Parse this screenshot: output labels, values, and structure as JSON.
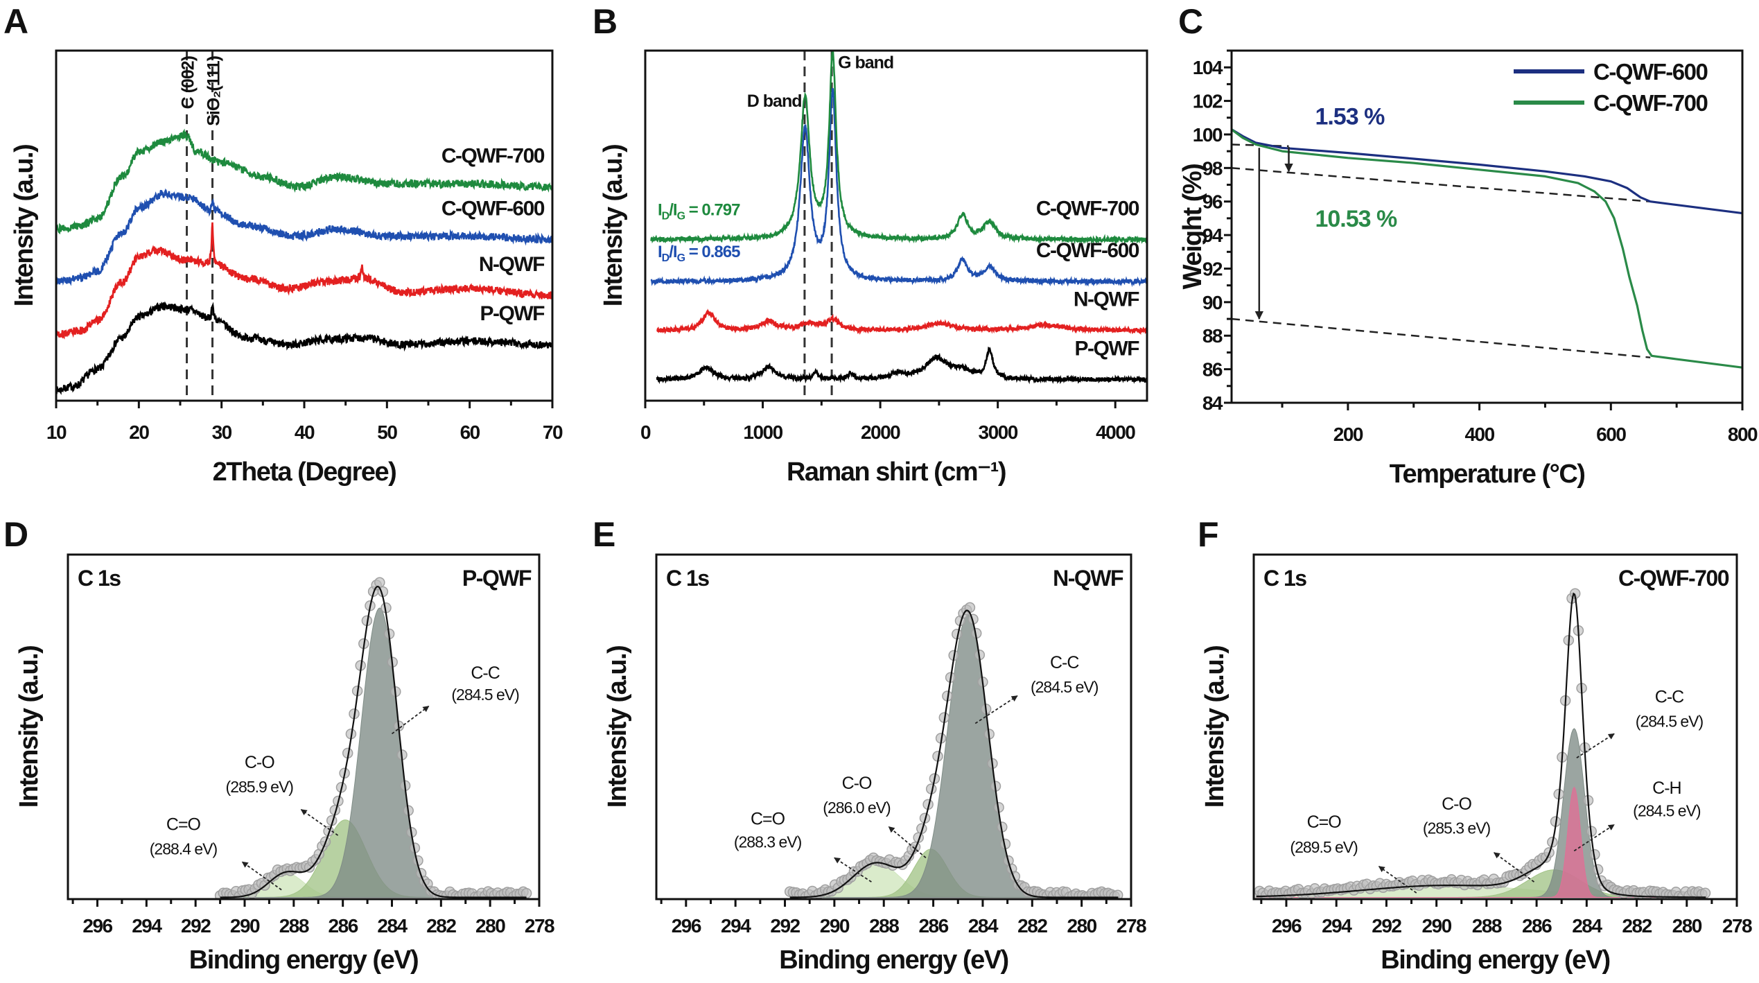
{
  "chart_data": [
    {
      "panel_label": "A",
      "type": "line",
      "xlabel": "2Theta (Degree)",
      "ylabel": "Intensity (a.u.)",
      "xlim": [
        10,
        70
      ],
      "ylim": [
        0,
        100
      ],
      "xticks": [
        10,
        20,
        30,
        40,
        50,
        60,
        70
      ],
      "x_minor_step": 5,
      "yticks": [],
      "reference_lines": [
        {
          "x": 25.8,
          "label": "C (002)"
        },
        {
          "x": 28.9,
          "label": "SiO₂(111)"
        }
      ],
      "series": [
        {
          "name": "P-QWF",
          "color": "#000000",
          "points": [
            [
              10,
              3
            ],
            [
              12,
              4
            ],
            [
              15,
              9
            ],
            [
              18,
              18
            ],
            [
              20,
              24
            ],
            [
              23,
              27
            ],
            [
              26,
              26
            ],
            [
              29,
              23
            ],
            [
              33,
              18
            ],
            [
              38,
              16
            ],
            [
              43,
              17.5
            ],
            [
              47,
              18
            ],
            [
              52,
              16
            ],
            [
              60,
              17
            ],
            [
              70,
              16
            ]
          ],
          "spikes": [
            [
              28.9,
              5
            ]
          ]
        },
        {
          "name": "N-QWF",
          "color": "#e32020",
          "points": [
            [
              10,
              19
            ],
            [
              13,
              20
            ],
            [
              15,
              23
            ],
            [
              18,
              34
            ],
            [
              20,
              41
            ],
            [
              22,
              43
            ],
            [
              26,
              40
            ],
            [
              29,
              39
            ],
            [
              33,
              35
            ],
            [
              38,
              32
            ],
            [
              43,
              34
            ],
            [
              47,
              35
            ],
            [
              52,
              31
            ],
            [
              60,
              32
            ],
            [
              70,
              30
            ]
          ],
          "spikes": [
            [
              28.9,
              11
            ],
            [
              47,
              3
            ]
          ]
        },
        {
          "name": "C-QWF-600",
          "color": "#1f4fb0",
          "points": [
            [
              10,
              34
            ],
            [
              13,
              35
            ],
            [
              15,
              37
            ],
            [
              18,
              48
            ],
            [
              20,
              55
            ],
            [
              23,
              59
            ],
            [
              26,
              58
            ],
            [
              29,
              54
            ],
            [
              33,
              50
            ],
            [
              39,
              47
            ],
            [
              44,
              49
            ],
            [
              50,
              47
            ],
            [
              60,
              47
            ],
            [
              70,
              46
            ]
          ],
          "spikes": [
            [
              28.9,
              3
            ]
          ]
        },
        {
          "name": "C-QWF-700",
          "color": "#1e8a3e",
          "points": [
            [
              10,
              49
            ],
            [
              13,
              50
            ],
            [
              15,
              52
            ],
            [
              18,
              64
            ],
            [
              20,
              71
            ],
            [
              23,
              74
            ],
            [
              25.8,
              76
            ],
            [
              27,
              71
            ],
            [
              30,
              68
            ],
            [
              35,
              64
            ],
            [
              39,
              61
            ],
            [
              44,
              64
            ],
            [
              50,
              62
            ],
            [
              60,
              62
            ],
            [
              70,
              61
            ]
          ],
          "spikes": []
        }
      ]
    },
    {
      "panel_label": "B",
      "type": "line",
      "xlabel": "Raman shirt (cm⁻¹)",
      "ylabel": "Intensity (a.u.)",
      "xlim": [
        0,
        4270
      ],
      "ylim": [
        0,
        100
      ],
      "xticks": [
        0,
        1000,
        2000,
        3000,
        4000
      ],
      "x_minor_step": 500,
      "yticks": [],
      "reference_lines": [
        {
          "x": 1356,
          "label": "D band"
        },
        {
          "x": 1587,
          "label": "G band"
        }
      ],
      "series": [
        {
          "name": "P-QWF",
          "color": "#000000",
          "baseline": 6,
          "x_start": 100,
          "peaks": [
            [
              520,
              3.5,
              70
            ],
            [
              1050,
              3.5,
              70
            ],
            [
              1450,
              2,
              25
            ],
            [
              1750,
              1.5,
              35
            ],
            [
              2150,
              1.5,
              60
            ],
            [
              2480,
              6,
              120
            ],
            [
              2700,
              2,
              90
            ],
            [
              2930,
              8,
              35
            ]
          ]
        },
        {
          "name": "N-QWF",
          "color": "#e32020",
          "baseline": 20,
          "x_start": 100,
          "peaks": [
            [
              540,
              5,
              65
            ],
            [
              1050,
              2.5,
              80
            ],
            [
              1400,
              2,
              100
            ],
            [
              1600,
              3,
              55
            ],
            [
              2500,
              2,
              140
            ],
            [
              3400,
              1.5,
              200
            ]
          ]
        },
        {
          "name": "C-QWF-600",
          "color": "#1f4fb0",
          "baseline": 34,
          "x_start": 50,
          "peaks": [
            [
              1360,
              43,
              50
            ],
            [
              1595,
              53,
              38
            ],
            [
              2700,
              6,
              50
            ],
            [
              2930,
              4,
              60
            ]
          ],
          "ratio_label": [
            {
              "t": "I"
            },
            {
              "t": "D",
              "sub": true
            },
            {
              "t": "/I"
            },
            {
              "t": "G",
              "sub": true
            },
            {
              "t": " = 0.865"
            }
          ]
        },
        {
          "name": "C-QWF-700",
          "color": "#1e8a3e",
          "baseline": 46,
          "x_start": 50,
          "peaks": [
            [
              1360,
              40,
              48
            ],
            [
              1595,
              52,
              36
            ],
            [
              2700,
              7,
              50
            ],
            [
              2930,
              5,
              60
            ]
          ],
          "ratio_label": [
            {
              "t": "I"
            },
            {
              "t": "D",
              "sub": true
            },
            {
              "t": "/I"
            },
            {
              "t": "G",
              "sub": true
            },
            {
              "t": " = 0.797"
            }
          ]
        }
      ]
    },
    {
      "panel_label": "C",
      "type": "line",
      "xlabel": "Temperature (°C)",
      "ylabel": "Weight (%)",
      "xlim": [
        23,
        800
      ],
      "ylim": [
        84,
        105
      ],
      "xticks": [
        200,
        400,
        600,
        800
      ],
      "x_minor_step": 100,
      "yticks": [
        84,
        86,
        88,
        90,
        92,
        94,
        96,
        98,
        100,
        102,
        104
      ],
      "y_minor_step": 1,
      "legend": "top-right",
      "series": [
        {
          "name": "C-QWF-600",
          "color": "#1c2f80",
          "points": [
            [
              23,
              100.3
            ],
            [
              40,
              99.9
            ],
            [
              60,
              99.5
            ],
            [
              100,
              99.2
            ],
            [
              200,
              98.9
            ],
            [
              300,
              98.55
            ],
            [
              400,
              98.2
            ],
            [
              500,
              97.8
            ],
            [
              560,
              97.5
            ],
            [
              600,
              97.2
            ],
            [
              625,
              96.8
            ],
            [
              645,
              96.25
            ],
            [
              660,
              96.0
            ],
            [
              700,
              95.8
            ],
            [
              800,
              95.3
            ]
          ]
        },
        {
          "name": "C-QWF-700",
          "color": "#2a8a48",
          "points": [
            [
              23,
              100.3
            ],
            [
              40,
              99.8
            ],
            [
              60,
              99.4
            ],
            [
              100,
              99.0
            ],
            [
              200,
              98.6
            ],
            [
              300,
              98.3
            ],
            [
              400,
              97.9
            ],
            [
              500,
              97.5
            ],
            [
              550,
              97.1
            ],
            [
              575,
              96.6
            ],
            [
              592,
              96.0
            ],
            [
              605,
              95.0
            ],
            [
              618,
              93.2
            ],
            [
              628,
              91.5
            ],
            [
              640,
              89.8
            ],
            [
              648,
              88.3
            ],
            [
              655,
              87.2
            ],
            [
              662,
              86.8
            ],
            [
              700,
              86.6
            ],
            [
              800,
              86.1
            ]
          ]
        }
      ],
      "guide_lines": [
        [
          [
            23,
            99.4
          ],
          [
            110,
            99.3
          ]
        ],
        [
          [
            23,
            98.0
          ],
          [
            660,
            96.0
          ]
        ],
        [
          [
            23,
            89.0
          ],
          [
            660,
            86.7
          ]
        ]
      ],
      "annotations": [
        {
          "text": "1.53 %",
          "color": "#1c2f80",
          "arrow": [
            [
              110,
              99.25
            ],
            [
              110,
              97.8
            ]
          ]
        },
        {
          "text": "10.53 %",
          "color": "#2a8a48",
          "arrow": [
            [
              65,
              99.2
            ],
            [
              65,
              89.0
            ]
          ]
        }
      ]
    },
    {
      "panel_label": "D",
      "type": "area",
      "xlabel": "Binding energy (eV)",
      "ylabel": "Intensity (a.u.)",
      "xlim": [
        297.2,
        278
      ],
      "ylim": [
        0,
        100
      ],
      "xticks": [
        296,
        294,
        292,
        290,
        288,
        286,
        284,
        282,
        280,
        278
      ],
      "x_minor_step": 1,
      "yticks": [],
      "core_level": "C 1s",
      "sample": "P-QWF",
      "data_range": [
        291,
        278.5
      ],
      "components": [
        {
          "name": "C=O",
          "energy": "(288.4 eV)",
          "center": 288.3,
          "height": 7,
          "fwhm": 1.7,
          "color": "#cfe6bd"
        },
        {
          "name": "C-O",
          "energy": "(285.9 eV)",
          "center": 285.9,
          "height": 22.5,
          "fwhm": 2.0,
          "color": "#a3c488"
        },
        {
          "name": "C-C",
          "energy": "(284.5 eV)",
          "center": 284.5,
          "height": 84,
          "fwhm": 1.75,
          "color": "#7f8c86"
        }
      ]
    },
    {
      "panel_label": "E",
      "type": "area",
      "xlabel": "Binding energy (eV)",
      "ylabel": "Intensity (a.u.)",
      "xlim": [
        297.2,
        278
      ],
      "ylim": [
        0,
        100
      ],
      "xticks": [
        296,
        294,
        292,
        290,
        288,
        286,
        284,
        282,
        280,
        278
      ],
      "x_minor_step": 1,
      "yticks": [],
      "core_level": "C 1s",
      "sample": "N-QWF",
      "data_range": [
        291.8,
        278.5
      ],
      "components": [
        {
          "name": "C=O",
          "energy": "(288.3 eV)",
          "center": 288.3,
          "height": 10,
          "fwhm": 2.2,
          "color": "#cfe6bd"
        },
        {
          "name": "C-O",
          "energy": "(286.0 eV)",
          "center": 286.1,
          "height": 14,
          "fwhm": 1.6,
          "color": "#a3c488"
        },
        {
          "name": "C-C",
          "energy": "(284.5 eV)",
          "center": 284.6,
          "height": 82,
          "fwhm": 1.9,
          "color": "#7f8c86"
        }
      ]
    },
    {
      "panel_label": "F",
      "type": "area",
      "xlabel": "Binding energy (eV)",
      "ylabel": "Intensity (a.u.)",
      "xlim": [
        297.3,
        278
      ],
      "ylim": [
        0,
        100
      ],
      "xticks": [
        296,
        294,
        292,
        290,
        288,
        286,
        284,
        282,
        280,
        278
      ],
      "x_minor_step": 1,
      "yticks": [],
      "core_level": "C 1s",
      "sample": "C-QWF-700",
      "data_range": [
        297.2,
        279.2
      ],
      "components": [
        {
          "name": "C=O",
          "energy": "(289.5 eV)",
          "center": 289.5,
          "height": 3.5,
          "fwhm": 8,
          "color": "#cfe6bd"
        },
        {
          "name": "C-O",
          "energy": "(285.3 eV)",
          "center": 285.3,
          "height": 8,
          "fwhm": 2.5,
          "color": "#a3c488"
        },
        {
          "name": "C-C",
          "energy": "(284.5 eV)",
          "center": 284.5,
          "height": 49,
          "fwhm": 1.0,
          "color": "#7f8c86"
        },
        {
          "name": "C-H",
          "energy": "(284.5 eV)",
          "center": 284.5,
          "height": 32,
          "fwhm": 0.6,
          "color": "#e07096"
        }
      ]
    }
  ]
}
